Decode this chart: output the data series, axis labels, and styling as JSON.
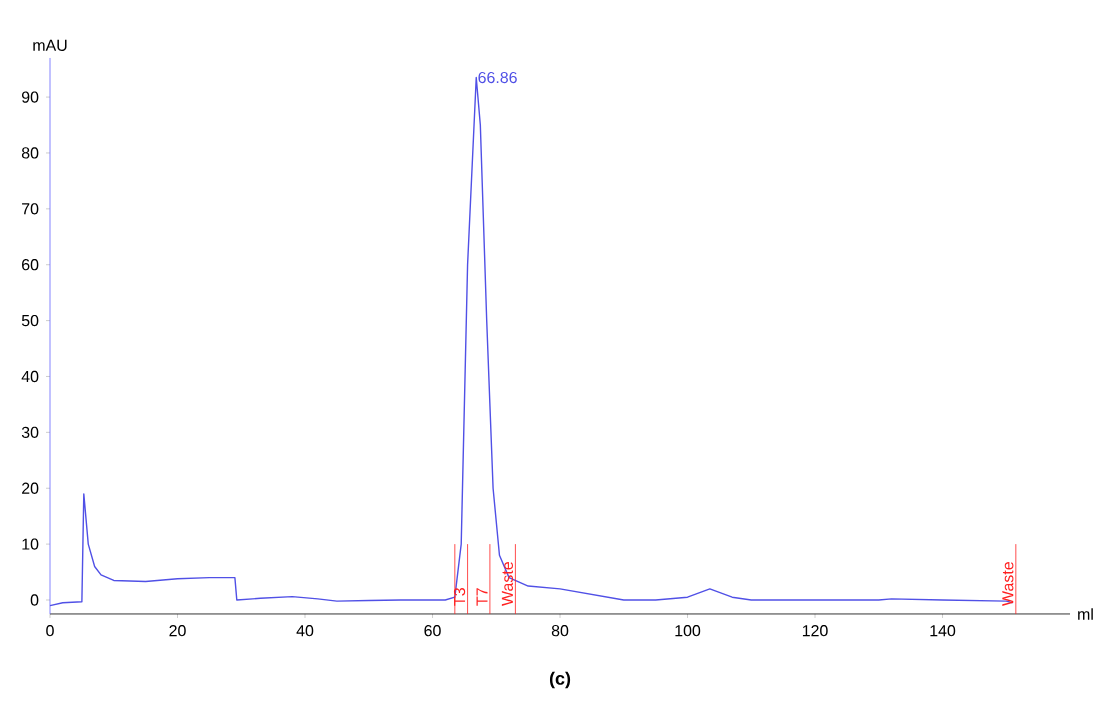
{
  "chart_data": {
    "type": "line",
    "xlabel": "ml",
    "ylabel": "mAU",
    "x": [
      0,
      2,
      5,
      5.3,
      6,
      7,
      8,
      10,
      15,
      20,
      25,
      29,
      29.3,
      33,
      38,
      42,
      45,
      50,
      55,
      62,
      63.5,
      64.5,
      65.5,
      66.86,
      67.5,
      68.5,
      69.5,
      70.5,
      72,
      75,
      80,
      85,
      90,
      95,
      100,
      103.5,
      107,
      110,
      120,
      130,
      132,
      140,
      150,
      151
    ],
    "series": [
      {
        "color": "#5050e6",
        "values": [
          -1,
          -0.5,
          -0.3,
          19,
          10,
          6,
          4.5,
          3.5,
          3.3,
          3.8,
          4,
          4,
          0,
          0.3,
          0.6,
          0.2,
          -0.2,
          -0.1,
          0,
          0,
          0.5,
          10,
          60,
          93.5,
          85,
          50,
          20,
          8,
          4,
          2.5,
          2,
          1,
          0,
          0,
          0.5,
          2,
          0.5,
          0,
          0,
          0,
          0.2,
          0,
          -0.2,
          -0.5
        ]
      }
    ],
    "xlim": [
      0,
      160
    ],
    "ylim": [
      -2.5,
      97
    ],
    "xticks": [
      0,
      20,
      40,
      60,
      80,
      100,
      120,
      140
    ],
    "yticks": [
      0,
      10,
      20,
      30,
      40,
      50,
      60,
      70,
      80,
      90
    ],
    "grid": false,
    "marker": "none",
    "line_style": "solid",
    "ref_lines": [
      {
        "axis": "x",
        "value": 63.5,
        "label": null,
        "color": "#ff2020"
      },
      {
        "axis": "x",
        "value": 65.5,
        "label": "T3",
        "color": "#ff2020"
      },
      {
        "axis": "x",
        "value": 69,
        "label": "T7",
        "color": "#ff2020"
      },
      {
        "axis": "x",
        "value": 73,
        "label": "Waste",
        "color": "#ff2020"
      },
      {
        "axis": "x",
        "value": 151.5,
        "label": "Waste",
        "color": "#ff2020"
      }
    ],
    "annotations": [
      {
        "text": "66.86",
        "x": 66.86,
        "y": 93.5
      },
      "(c)"
    ]
  }
}
